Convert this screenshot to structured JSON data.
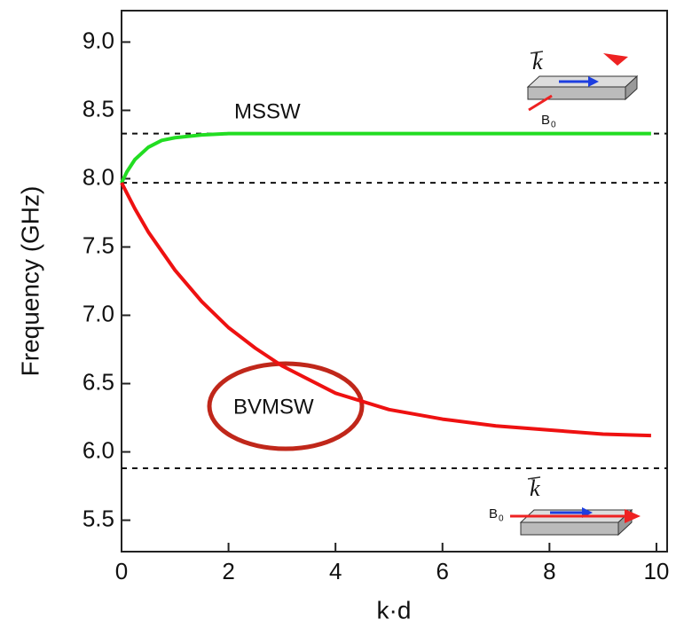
{
  "chart_data": {
    "type": "line",
    "x_label": "k·d",
    "y_label": "Frequency (GHz)",
    "xlim": [
      0,
      10.2
    ],
    "ylim": [
      5.27,
      9.23
    ],
    "xticks": [
      0,
      2,
      4,
      6,
      8,
      10
    ],
    "yticks": [
      5.5,
      {
        "value": 6,
        "label": "6.0"
      },
      6.5,
      {
        "value": 7,
        "label": "7.0"
      },
      7.5,
      {
        "value": 8,
        "label": "8.0"
      },
      8.5,
      {
        "value": 9,
        "label": "9.0"
      }
    ],
    "series": [
      {
        "name": "MSSW",
        "color": "#22dd22",
        "x": [
          0,
          0.1,
          0.25,
          0.5,
          0.75,
          1,
          1.5,
          2,
          3,
          4,
          6,
          8,
          9.9
        ],
        "values": [
          7.97,
          8.05,
          8.14,
          8.23,
          8.28,
          8.3,
          8.32,
          8.33,
          8.33,
          8.33,
          8.33,
          8.33,
          8.33
        ]
      },
      {
        "name": "BVMSW",
        "color": "#ee1111",
        "x": [
          0,
          0.25,
          0.5,
          1,
          1.5,
          2,
          2.5,
          3,
          4,
          5,
          6,
          7,
          8,
          9,
          9.9
        ],
        "values": [
          7.97,
          7.78,
          7.61,
          7.33,
          7.1,
          6.91,
          6.76,
          6.63,
          6.43,
          6.31,
          6.24,
          6.19,
          6.16,
          6.13,
          6.12
        ]
      }
    ],
    "reference_lines": [
      8.33,
      7.97,
      5.88
    ],
    "insets": [
      {
        "wave_label": "k",
        "field_label": "B",
        "field_subscript": "0"
      },
      {
        "wave_label": "k",
        "field_label": "B",
        "field_subscript": "0"
      }
    ]
  }
}
